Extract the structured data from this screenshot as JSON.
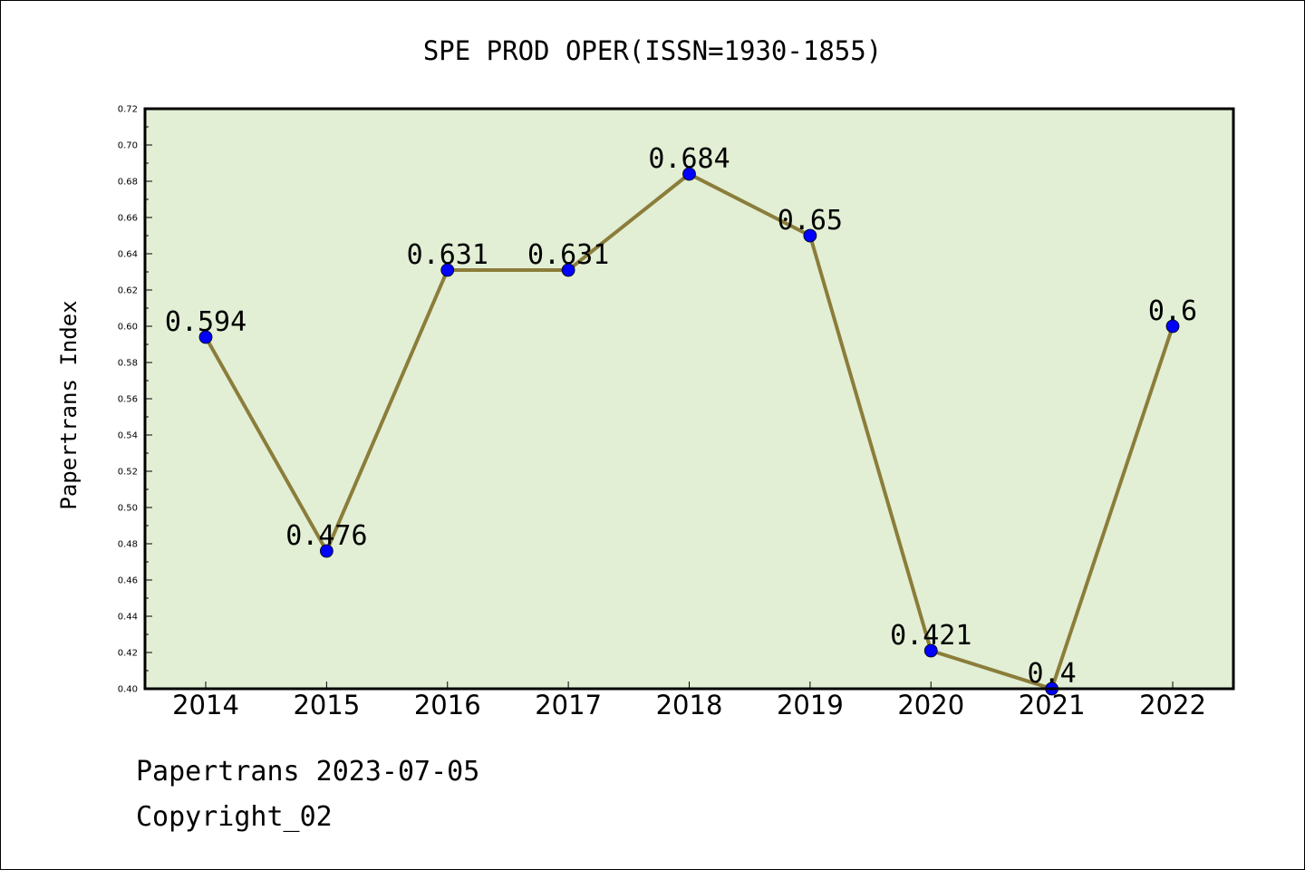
{
  "chart_data": {
    "type": "line",
    "title": "SPE PROD OPER(ISSN=1930-1855)",
    "xlabel": "",
    "ylabel": "Papertrans Index",
    "categories": [
      "2014",
      "2015",
      "2016",
      "2017",
      "2018",
      "2019",
      "2020",
      "2021",
      "2022"
    ],
    "series": [
      {
        "values": [
          0.594,
          0.476,
          0.631,
          0.631,
          0.684,
          0.65,
          0.421,
          0.4,
          0.6
        ],
        "labels": [
          "0.594",
          "0.476",
          "0.631",
          "0.631",
          "0.684",
          "0.65",
          "0.421",
          "0.4",
          "0.6"
        ]
      }
    ],
    "ylim": [
      0.4,
      0.72
    ],
    "yticks": [
      "0.40",
      "0.42",
      "0.44",
      "0.46",
      "0.48",
      "0.50",
      "0.52",
      "0.54",
      "0.56",
      "0.58",
      "0.60",
      "0.62",
      "0.64",
      "0.66",
      "0.68",
      "0.70",
      "0.72"
    ],
    "grid": false,
    "colors": {
      "plot_background": "#e2efd5",
      "line": "#8b7d3a",
      "marker": "#0000ff"
    }
  },
  "footer": {
    "date_text": "Papertrans 2023-07-05",
    "copyright_text": "Copyright_02"
  }
}
